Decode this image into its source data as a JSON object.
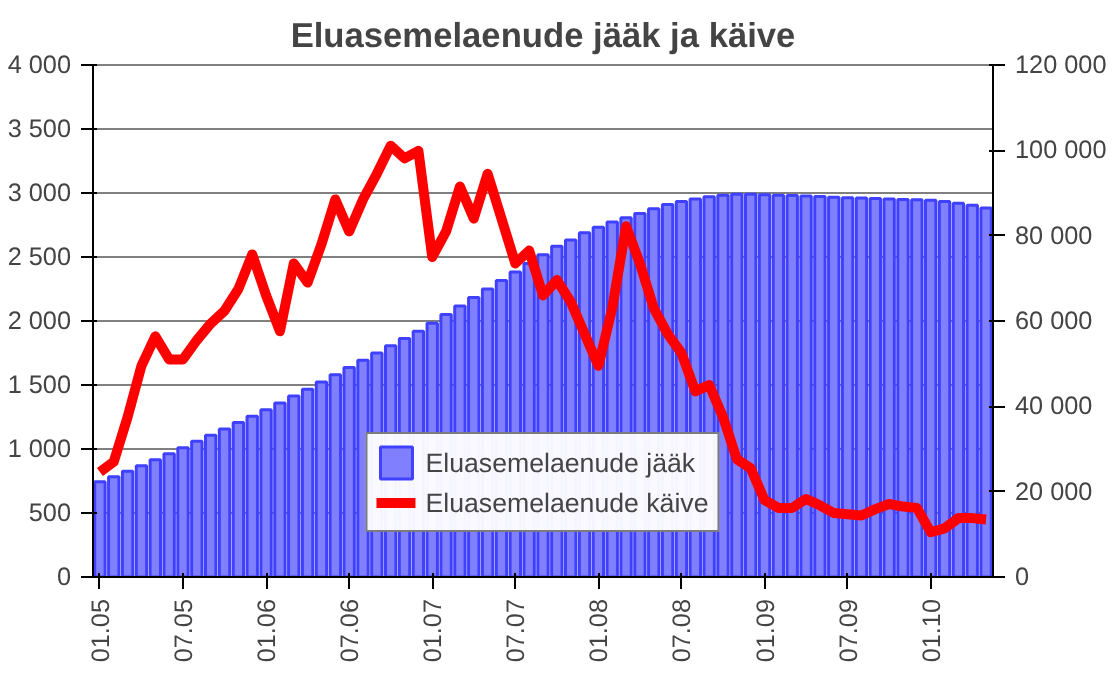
{
  "chart_data": {
    "type": "bar",
    "title": "Eluasemelaenude jääk ja käive",
    "categories": [
      "01.05",
      null,
      null,
      null,
      null,
      null,
      "07.05",
      null,
      null,
      null,
      null,
      null,
      "01.06",
      null,
      null,
      null,
      null,
      null,
      "07.06",
      null,
      null,
      null,
      null,
      null,
      "01.07",
      null,
      null,
      null,
      null,
      null,
      "07.07",
      null,
      null,
      null,
      null,
      null,
      "01.08",
      null,
      null,
      null,
      null,
      null,
      "07.08",
      null,
      null,
      null,
      null,
      null,
      "01.09",
      null,
      null,
      null,
      null,
      null,
      "07.09",
      null,
      null,
      null,
      null,
      null,
      "01.10",
      null,
      null,
      null,
      null
    ],
    "series": [
      {
        "name": "Eluasemelaenude jääk",
        "axis": "y2",
        "color": "#8080ff",
        "values": [
          22300,
          23500,
          24800,
          26100,
          27500,
          28900,
          30300,
          31800,
          33200,
          34700,
          36200,
          37700,
          39200,
          40800,
          42400,
          44000,
          45700,
          47400,
          49100,
          50800,
          52500,
          54200,
          55900,
          57600,
          59500,
          61500,
          63500,
          65500,
          67500,
          69500,
          71500,
          73500,
          75500,
          77500,
          79000,
          80700,
          82000,
          83200,
          84200,
          85200,
          86300,
          87300,
          88000,
          88600,
          89100,
          89500,
          89700,
          89700,
          89600,
          89500,
          89400,
          89300,
          89200,
          89000,
          88900,
          88800,
          88700,
          88600,
          88500,
          88400,
          88300,
          88000,
          87600,
          87100,
          86500
        ]
      },
      {
        "name": "Eluasemelaenude käive",
        "type": "line",
        "color": "#ff0000",
        "values": [
          820,
          900,
          1250,
          1650,
          1880,
          1700,
          1700,
          1850,
          1980,
          2080,
          2250,
          2520,
          2200,
          1920,
          2450,
          2300,
          2600,
          2950,
          2700,
          2950,
          3150,
          3370,
          3270,
          3330,
          2500,
          2700,
          3050,
          2800,
          3150,
          2800,
          2450,
          2550,
          2200,
          2320,
          2150,
          1900,
          1650,
          2100,
          2740,
          2450,
          2100,
          1900,
          1750,
          1450,
          1500,
          1250,
          920,
          850,
          600,
          540,
          540,
          610,
          560,
          500,
          490,
          480,
          530,
          570,
          550,
          540,
          350,
          380,
          460,
          460,
          450
        ]
      }
    ],
    "ylim": [
      0,
      4000
    ],
    "yticks": [
      {
        "value": 0,
        "label": "0"
      },
      {
        "value": 500,
        "label": "500"
      },
      {
        "value": 1000,
        "label": "1 000"
      },
      {
        "value": 1500,
        "label": "1 500"
      },
      {
        "value": 2000,
        "label": "2 000"
      },
      {
        "value": 2500,
        "label": "2 500"
      },
      {
        "value": 3000,
        "label": "3 000"
      },
      {
        "value": 3500,
        "label": "3 500"
      },
      {
        "value": 4000,
        "label": "4 000"
      }
    ],
    "y2lim": [
      0,
      120000
    ],
    "y2ticks": [
      {
        "value": 0,
        "label": "0"
      },
      {
        "value": 20000,
        "label": "20 000"
      },
      {
        "value": 40000,
        "label": "40 000"
      },
      {
        "value": 60000,
        "label": "60 000"
      },
      {
        "value": 80000,
        "label": "80 000"
      },
      {
        "value": 100000,
        "label": "100 000"
      },
      {
        "value": 120000,
        "label": "120 000"
      }
    ],
    "grid": "y",
    "legend": "bottom",
    "line_style": "solid",
    "marker": "none"
  }
}
